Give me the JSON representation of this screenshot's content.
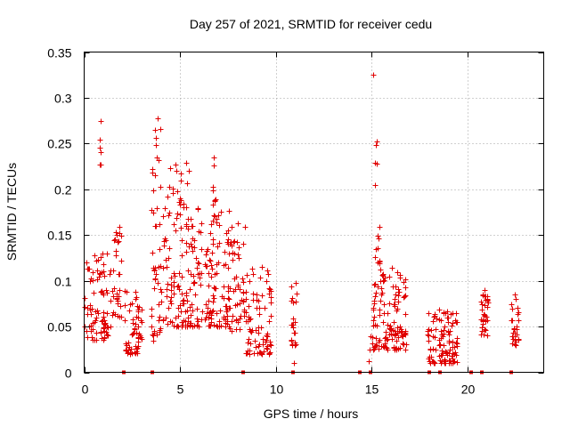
{
  "chart_data": {
    "type": "scatter",
    "title": "Day 257 of 2021, SRMTID for receiver cedu",
    "xlabel": "GPS time / hours",
    "ylabel": "SRMTID / TECUs",
    "xlim": [
      0,
      24
    ],
    "ylim": [
      0,
      0.35
    ],
    "xticks": [
      0,
      5,
      10,
      15,
      20
    ],
    "yticks": [
      0,
      0.05,
      0.1,
      0.15,
      0.2,
      0.25,
      0.3,
      0.35
    ],
    "ytick_labels": [
      "0",
      "0.05",
      "0.1",
      "0.15",
      "0.2",
      "0.25",
      "0.3",
      "0.35"
    ],
    "grid": true,
    "marker": "+",
    "color": "#e00000",
    "zero_markers": [
      2.05,
      3.55,
      8.3,
      10.9,
      14.4,
      14.95,
      18.0,
      18.6,
      20.2,
      20.75,
      22.3
    ],
    "clusters": [
      {
        "x0": 0.0,
        "x1": 1.5,
        "ymin": 0.035,
        "ymax": 0.13,
        "n": 90
      },
      {
        "x0": 0.8,
        "x1": 0.9,
        "ymin": 0.2,
        "ymax": 0.275,
        "n": 5
      },
      {
        "x0": 1.5,
        "x1": 1.95,
        "ymin": 0.06,
        "ymax": 0.16,
        "n": 30
      },
      {
        "x0": 2.1,
        "x1": 3.0,
        "ymin": 0.02,
        "ymax": 0.09,
        "n": 60
      },
      {
        "x0": 3.5,
        "x1": 4.0,
        "ymin": 0.04,
        "ymax": 0.28,
        "n": 45
      },
      {
        "x0": 4.0,
        "x1": 5.5,
        "ymin": 0.05,
        "ymax": 0.23,
        "n": 110
      },
      {
        "x0": 5.5,
        "x1": 7.6,
        "ymin": 0.05,
        "ymax": 0.185,
        "n": 140
      },
      {
        "x0": 6.7,
        "x1": 6.9,
        "ymin": 0.17,
        "ymax": 0.235,
        "n": 8
      },
      {
        "x0": 7.5,
        "x1": 8.4,
        "ymin": 0.045,
        "ymax": 0.17,
        "n": 55
      },
      {
        "x0": 8.4,
        "x1": 9.8,
        "ymin": 0.02,
        "ymax": 0.12,
        "n": 80
      },
      {
        "x0": 10.8,
        "x1": 11.1,
        "ymin": 0.03,
        "ymax": 0.1,
        "n": 22
      },
      {
        "x0": 14.9,
        "x1": 16.8,
        "ymin": 0.025,
        "ymax": 0.12,
        "n": 130
      },
      {
        "x0": 15.15,
        "x1": 15.45,
        "ymin": 0.12,
        "ymax": 0.255,
        "n": 14
      },
      {
        "x0": 17.9,
        "x1": 18.4,
        "ymin": 0.01,
        "ymax": 0.065,
        "n": 30
      },
      {
        "x0": 18.5,
        "x1": 19.5,
        "ymin": 0.01,
        "ymax": 0.07,
        "n": 80
      },
      {
        "x0": 20.7,
        "x1": 21.1,
        "ymin": 0.04,
        "ymax": 0.095,
        "n": 35
      },
      {
        "x0": 22.3,
        "x1": 22.7,
        "ymin": 0.03,
        "ymax": 0.085,
        "n": 28
      }
    ],
    "outliers": [
      {
        "x": 15.1,
        "y": 0.325
      },
      {
        "x": 0.85,
        "y": 0.275
      },
      {
        "x": 3.85,
        "y": 0.278
      },
      {
        "x": 6.75,
        "y": 0.235
      },
      {
        "x": 15.3,
        "y": 0.252
      },
      {
        "x": 10.95,
        "y": 0.01
      },
      {
        "x": 3.6,
        "y": 0.035
      },
      {
        "x": 14.85,
        "y": 0.012
      }
    ]
  }
}
